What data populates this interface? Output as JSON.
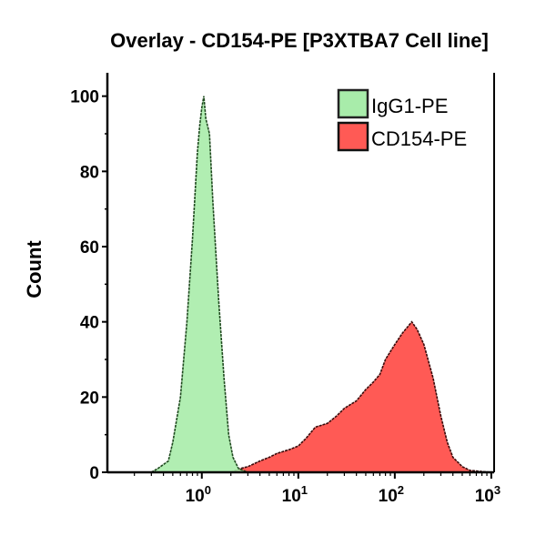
{
  "chart_data": {
    "type": "area",
    "title": "Overlay - CD154-PE [P3XTBA7 Cell line]",
    "xlabel": "",
    "ylabel": "Count",
    "x_scale": "log",
    "xlim": [
      0.105,
      1070
    ],
    "ylim": [
      0,
      105
    ],
    "x_ticks": [
      {
        "value": 1,
        "base": "10",
        "exp": "0"
      },
      {
        "value": 10,
        "base": "10",
        "exp": "1"
      },
      {
        "value": 100,
        "base": "10",
        "exp": "2"
      },
      {
        "value": 1000,
        "base": "10",
        "exp": "3"
      }
    ],
    "y_ticks": [
      0,
      20,
      40,
      60,
      80,
      100
    ],
    "grid": false,
    "legend_position": "top-right",
    "series": [
      {
        "name": "IgG1-PE",
        "color": "#a8ecaa",
        "x": [
          0.3,
          0.35,
          0.45,
          0.5,
          0.6,
          0.7,
          0.8,
          0.9,
          0.95,
          1.0,
          1.05,
          1.1,
          1.2,
          1.3,
          1.4,
          1.5,
          1.7,
          1.9,
          2.1,
          2.4,
          3.0
        ],
        "y": [
          0,
          1,
          3,
          8,
          20,
          40,
          62,
          85,
          92,
          97,
          100,
          94,
          90,
          72,
          58,
          45,
          25,
          10,
          4,
          1,
          0
        ]
      },
      {
        "name": "CD154-PE",
        "color": "#ff5a55",
        "x": [
          2,
          2.5,
          3,
          4,
          5,
          6,
          8,
          10,
          12,
          15,
          20,
          25,
          30,
          40,
          50,
          60,
          70,
          80,
          100,
          120,
          150,
          170,
          200,
          250,
          300,
          350,
          400,
          500,
          600,
          800,
          1000
        ],
        "y": [
          0,
          1,
          1.5,
          3,
          4,
          5,
          6,
          7,
          9,
          12,
          13,
          15,
          17,
          19,
          22,
          24,
          26,
          30,
          34,
          37,
          40,
          38,
          34,
          25,
          15,
          8,
          4,
          1.5,
          0.5,
          0.2,
          0
        ]
      }
    ]
  }
}
